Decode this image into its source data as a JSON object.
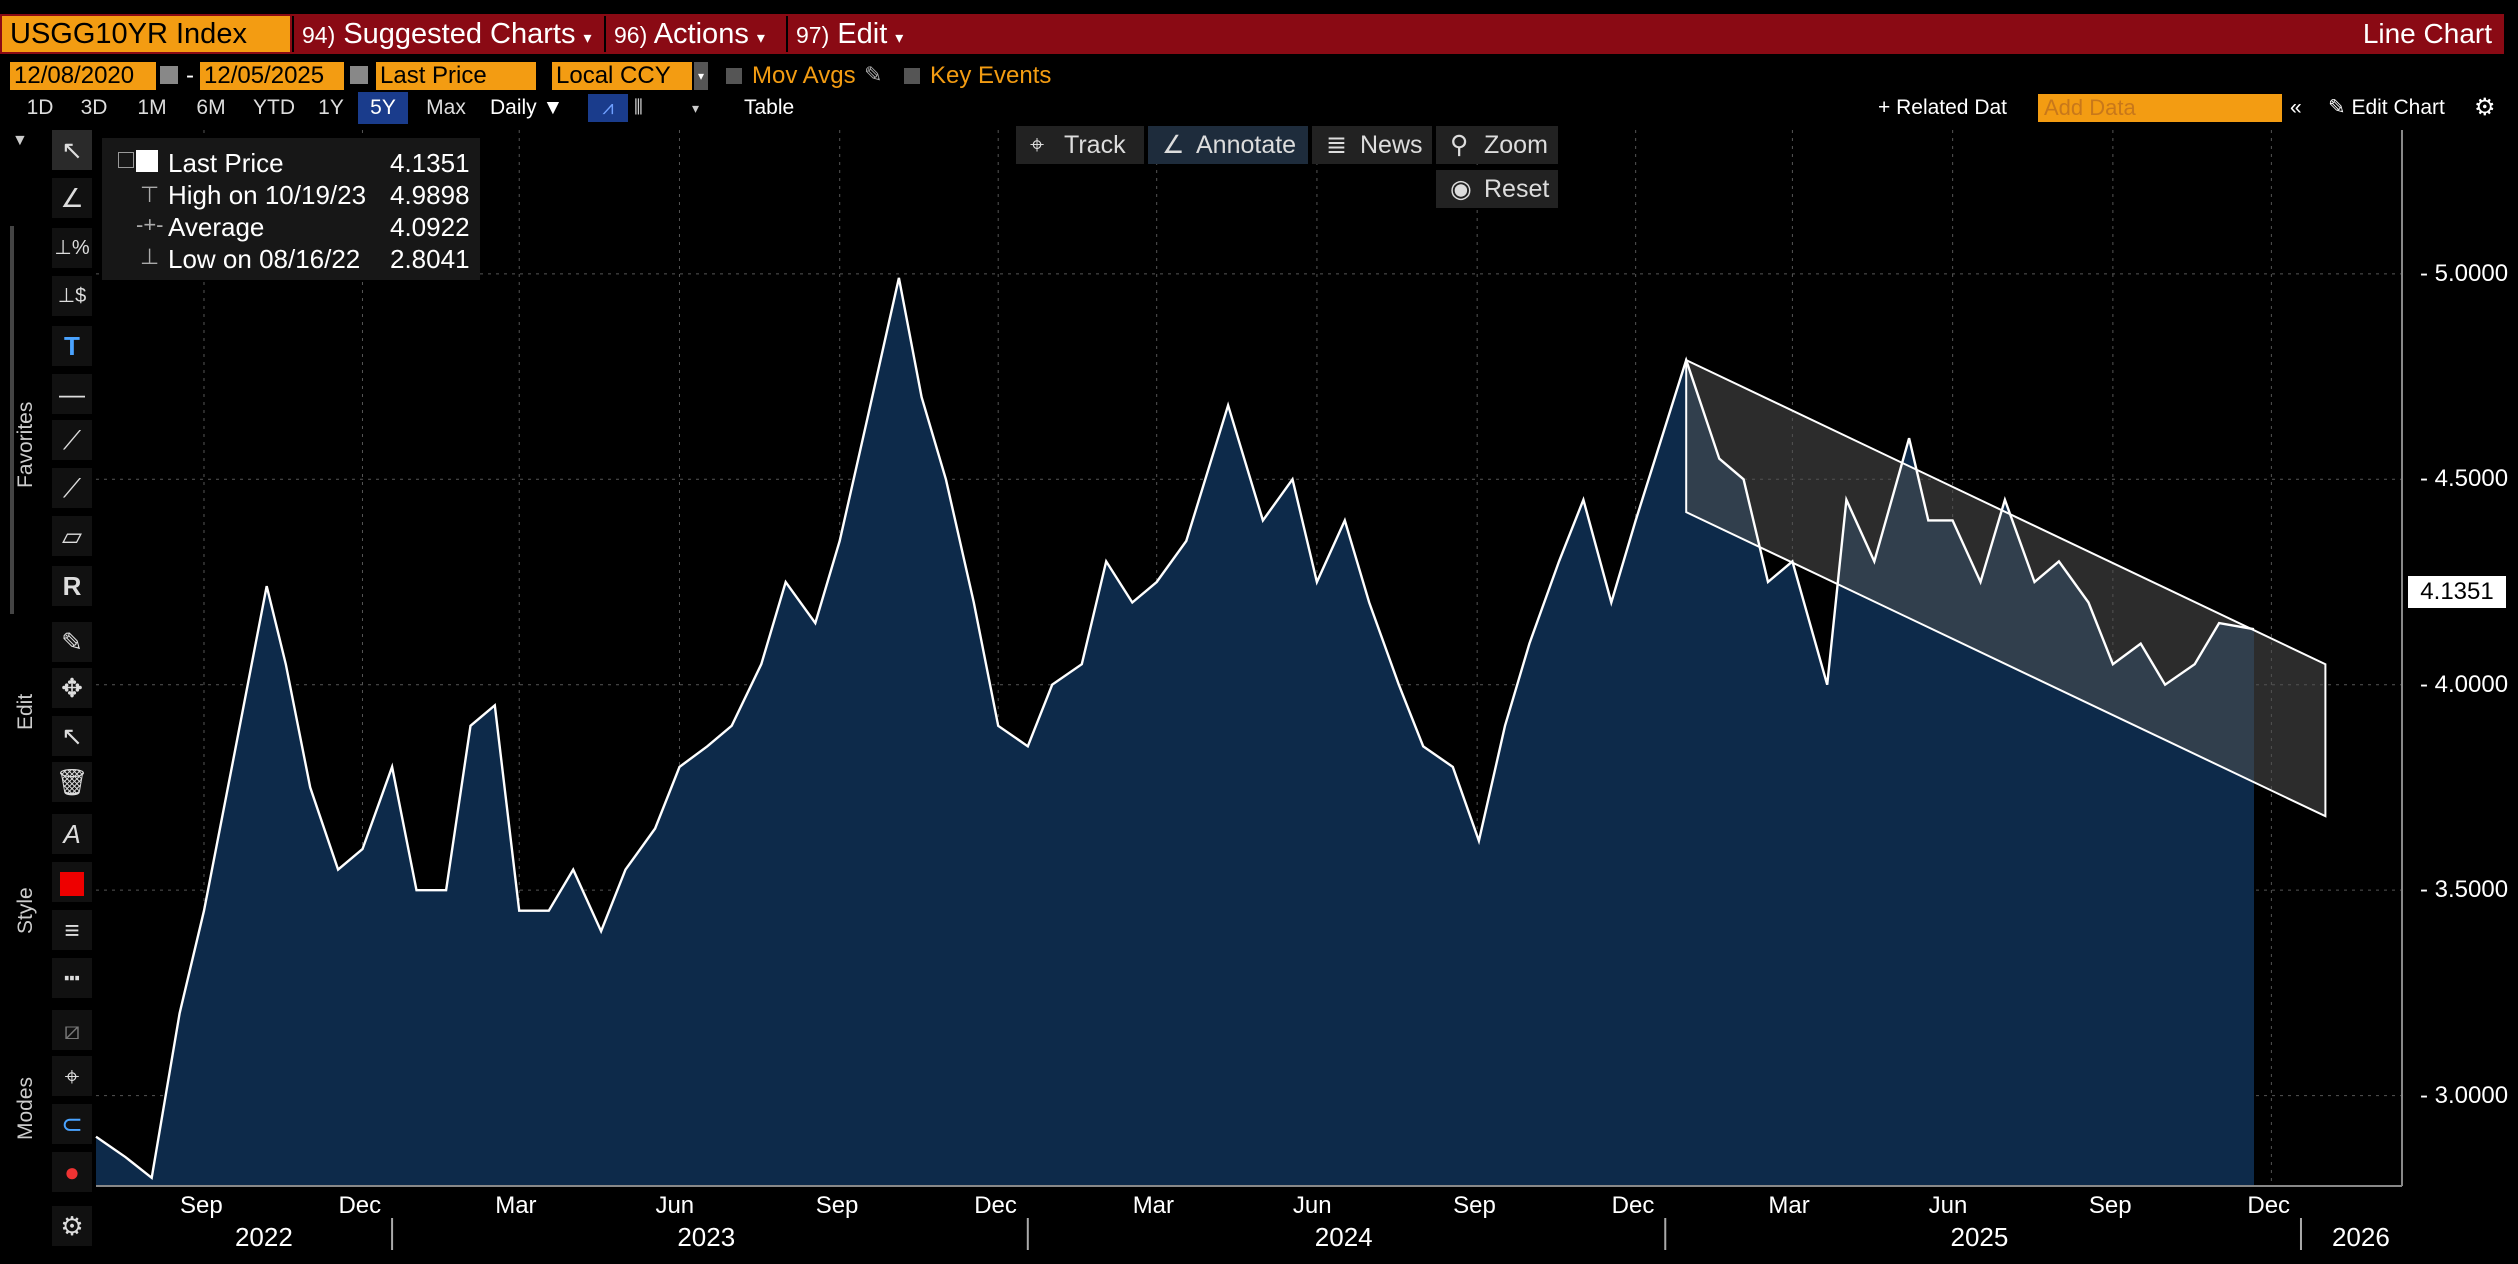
{
  "header": {
    "ticker": "USGG10YR Index",
    "menus": [
      {
        "num": "94)",
        "label": "Suggested Charts"
      },
      {
        "num": "96)",
        "label": "Actions"
      },
      {
        "num": "97)",
        "label": "Edit"
      }
    ],
    "chart_type": "Line Chart"
  },
  "settings": {
    "start_date": "12/08/2020",
    "end_date": "12/05/2025",
    "field": "Last Price",
    "currency": "Local CCY",
    "mov_avgs": "Mov Avgs",
    "key_events": "Key Events"
  },
  "ranges": [
    "1D",
    "3D",
    "1M",
    "6M",
    "YTD",
    "1Y",
    "5Y",
    "Max"
  ],
  "selected_range": "5Y",
  "periodicity": "Daily",
  "table_label": "Table",
  "related_data": "+ Related Dat",
  "add_data_placeholder": "Add Data",
  "edit_chart": "Edit Chart",
  "chart_tools": {
    "track": "Track",
    "annotate": "Annotate",
    "news": "News",
    "zoom": "Zoom",
    "reset": "Reset"
  },
  "side_labels": {
    "favorites": "Favorites",
    "edit": "Edit",
    "style": "Style",
    "modes": "Modes"
  },
  "legend": [
    {
      "label": "Last Price",
      "value": "4.1351"
    },
    {
      "label": "High on 10/19/23",
      "value": "4.9898"
    },
    {
      "label": "Average",
      "value": "4.0922"
    },
    {
      "label": "Low on 08/16/22",
      "value": "2.8041"
    }
  ],
  "last_value_tag": "4.1351",
  "colors": {
    "accent": "#f39c12",
    "header": "#8a0a14",
    "area": "#0d2a4a",
    "line": "#ffffff",
    "channel": "#3a3a3a"
  },
  "chart_data": {
    "type": "area",
    "y_ticks": [
      "5.0000",
      "4.5000",
      "4.0000",
      "3.5000",
      "3.0000"
    ],
    "ylim": [
      2.78,
      5.35
    ],
    "x_month_labels": [
      "Sep",
      "Dec",
      "Mar",
      "Jun",
      "Sep",
      "Dec",
      "Mar",
      "Jun",
      "Sep",
      "Dec",
      "Mar",
      "Jun",
      "Sep",
      "Dec"
    ],
    "x_year_labels": [
      "2022",
      "2023",
      "2024",
      "2025",
      "2026"
    ],
    "x": [
      "2022-07-15",
      "2022-08-01",
      "2022-08-16",
      "2022-09-01",
      "2022-09-15",
      "2022-10-01",
      "2022-10-21",
      "2022-11-01",
      "2022-11-15",
      "2022-12-01",
      "2022-12-15",
      "2023-01-01",
      "2023-01-15",
      "2023-02-01",
      "2023-02-15",
      "2023-03-01",
      "2023-03-15",
      "2023-04-01",
      "2023-04-15",
      "2023-05-01",
      "2023-05-15",
      "2023-06-01",
      "2023-06-15",
      "2023-07-01",
      "2023-07-15",
      "2023-08-01",
      "2023-08-15",
      "2023-09-01",
      "2023-09-15",
      "2023-10-01",
      "2023-10-19",
      "2023-11-01",
      "2023-11-15",
      "2023-12-01",
      "2023-12-15",
      "2024-01-01",
      "2024-01-15",
      "2024-02-01",
      "2024-02-15",
      "2024-03-01",
      "2024-03-15",
      "2024-04-01",
      "2024-04-25",
      "2024-05-15",
      "2024-06-01",
      "2024-06-15",
      "2024-07-01",
      "2024-07-15",
      "2024-08-01",
      "2024-08-15",
      "2024-09-01",
      "2024-09-16",
      "2024-10-01",
      "2024-10-15",
      "2024-11-01",
      "2024-11-15",
      "2024-12-01",
      "2024-12-15",
      "2025-01-13",
      "2025-02-01",
      "2025-02-15",
      "2025-03-01",
      "2025-03-15",
      "2025-04-04",
      "2025-04-15",
      "2025-05-01",
      "2025-05-21",
      "2025-06-01",
      "2025-06-15",
      "2025-07-01",
      "2025-07-15",
      "2025-08-01",
      "2025-08-15",
      "2025-09-01",
      "2025-09-15",
      "2025-10-01",
      "2025-10-15",
      "2025-11-01",
      "2025-11-15",
      "2025-12-05"
    ],
    "values": [
      2.9,
      2.85,
      2.8,
      3.2,
      3.45,
      3.8,
      4.24,
      4.05,
      3.75,
      3.55,
      3.6,
      3.8,
      3.5,
      3.5,
      3.9,
      3.95,
      3.45,
      3.45,
      3.55,
      3.4,
      3.55,
      3.65,
      3.8,
      3.85,
      3.9,
      4.05,
      4.25,
      4.15,
      4.35,
      4.65,
      4.99,
      4.7,
      4.5,
      4.2,
      3.9,
      3.85,
      4.0,
      4.05,
      4.3,
      4.2,
      4.25,
      4.35,
      4.68,
      4.4,
      4.5,
      4.25,
      4.4,
      4.2,
      4.0,
      3.85,
      3.8,
      3.62,
      3.9,
      4.1,
      4.3,
      4.45,
      4.2,
      4.4,
      4.79,
      4.55,
      4.5,
      4.25,
      4.3,
      4.0,
      4.45,
      4.3,
      4.6,
      4.4,
      4.4,
      4.25,
      4.45,
      4.25,
      4.3,
      4.2,
      4.05,
      4.1,
      4.0,
      4.05,
      4.15,
      4.1351
    ],
    "channel": {
      "upper": [
        [
          "2025-01-13",
          4.79
        ],
        [
          "2026-01-15",
          4.05
        ]
      ],
      "lower": [
        [
          "2025-01-13",
          4.42
        ],
        [
          "2026-01-15",
          3.68
        ]
      ]
    }
  }
}
